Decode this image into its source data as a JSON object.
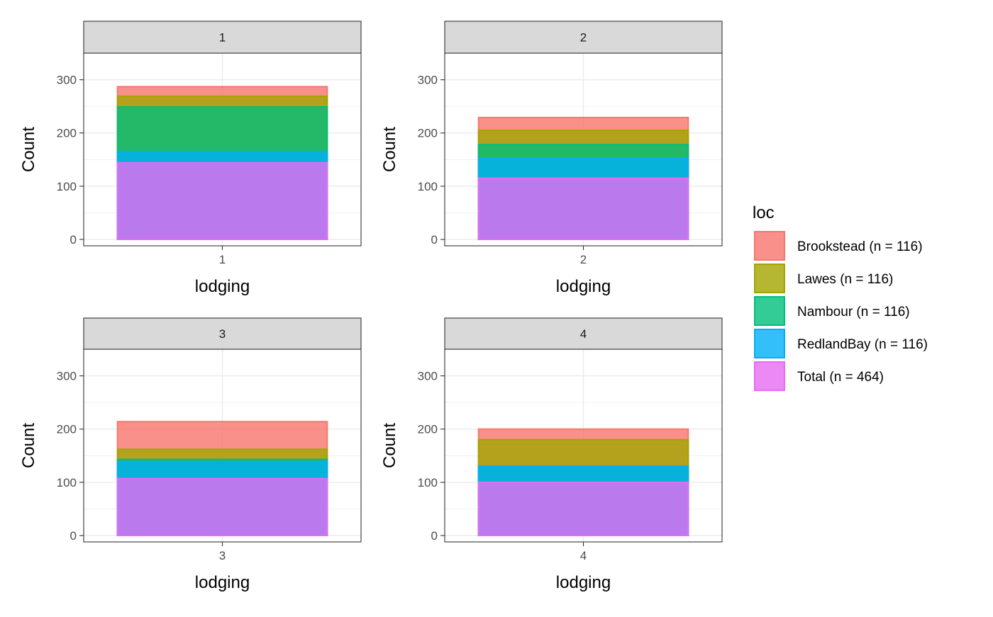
{
  "chart_data": {
    "type": "bar",
    "subtype": "faceted-overlaid-bars",
    "facets": [
      {
        "strip": "1",
        "x_tick": "1",
        "xlabel": "lodging",
        "ylabel": "Count",
        "values": {
          "Brookstead (n = 116)": 287,
          "Lawes (n = 116)": 269,
          "Nambour (n = 116)": 249,
          "RedlandBay (n = 116)": 165,
          "Total (n = 464)": 144
        }
      },
      {
        "strip": "2",
        "x_tick": "2",
        "xlabel": "lodging",
        "ylabel": "Count",
        "values": {
          "Brookstead (n = 116)": 229,
          "Lawes (n = 116)": 205,
          "Nambour (n = 116)": 178,
          "RedlandBay (n = 116)": 152,
          "Total (n = 464)": 115
        }
      },
      {
        "strip": "3",
        "x_tick": "3",
        "xlabel": "lodging",
        "ylabel": "Count",
        "values": {
          "Brookstead (n = 116)": 214,
          "Lawes (n = 116)": 162,
          "Nambour (n = 116)": 143,
          "RedlandBay (n = 116)": 139,
          "Total (n = 464)": 107
        }
      },
      {
        "strip": "4",
        "x_tick": "4",
        "xlabel": "lodging",
        "ylabel": "Count",
        "values": {
          "Brookstead (n = 116)": 200,
          "Lawes (n = 116)": 180,
          "Nambour (n = 116)": 130,
          "RedlandBay (n = 116)": 130,
          "Total (n = 464)": 100
        }
      }
    ],
    "ylim": [
      -12,
      350
    ],
    "y_ticks": [
      0,
      100,
      200,
      300
    ],
    "legend": {
      "title": "loc",
      "position": "right",
      "series": [
        {
          "name": "Brookstead (n = 116)",
          "color": "#F8766D"
        },
        {
          "name": "Lawes (n = 116)",
          "color": "#A3A500"
        },
        {
          "name": "Nambour (n = 116)",
          "color": "#00BF7D"
        },
        {
          "name": "RedlandBay (n = 116)",
          "color": "#00B0F6"
        },
        {
          "name": "Total (n = 464)",
          "color": "#E76BF3"
        }
      ]
    },
    "grid": true,
    "theme": "bw"
  }
}
